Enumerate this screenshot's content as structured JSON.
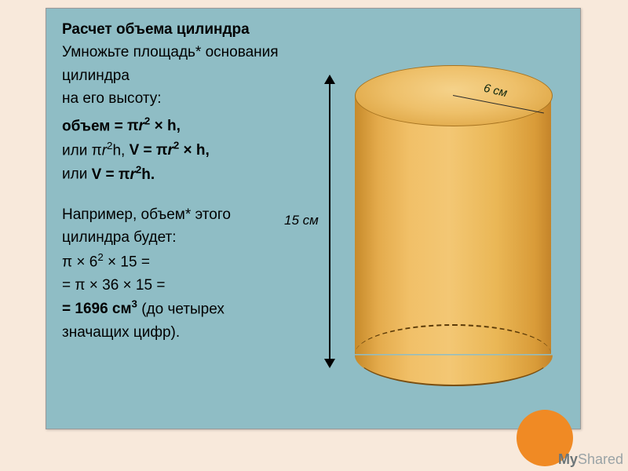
{
  "colors": {
    "page_bg": "#f8e9db",
    "slide_bg": "#8fbdc5",
    "text": "#000000",
    "cyl_light": "#f3c774",
    "cyl_mid": "#eab756",
    "cyl_dark": "#c78a2a",
    "cyl_top_light": "#f5d28a",
    "cyl_border": "#a67320",
    "accent_circle": "#f08a24",
    "watermark": "#9aa3a6"
  },
  "title": "Расчет объема цилиндра",
  "intro_line1": "Умножьте площадь* основания цилиндра",
  "intro_line2": "на его высоту:",
  "formula": {
    "line1_prefix": "объем = ",
    "line1_expr": "πr² × h,",
    "line2": "или πr²h, V = πr² × h,",
    "line3": "или V = πr²h."
  },
  "example": {
    "line1": "Например, объем* этого",
    "line2": "цилиндра будет:",
    "calc1": "π × 6² × 15 =",
    "calc2": "= π × 36 × 15 =",
    "calc3_value": "= 1696 см³",
    "calc3_note": " (до четырех",
    "calc4": "значащих цифр)."
  },
  "cylinder": {
    "height_label": "15 см",
    "radius_label": "6 см",
    "height_cm": 15,
    "radius_cm": 6
  },
  "watermark": {
    "my": "My",
    "shared": "Shared"
  }
}
